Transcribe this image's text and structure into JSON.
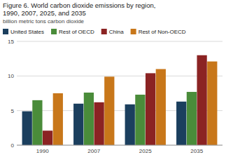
{
  "chart_data": {
    "type": "bar",
    "title": "Figure 6. World carbon dioxide emissions by region,",
    "subtitle": "1990, 2007, 2025, and 2035",
    "y_label": "billion metric tons carbon dioxide",
    "categories": [
      "1990",
      "2007",
      "2025",
      "2035"
    ],
    "series": [
      {
        "name": "United States",
        "color": "#1b3f5e",
        "values": [
          4.9,
          6.0,
          5.9,
          6.3
        ]
      },
      {
        "name": "Rest of OECD",
        "color": "#4a8c3a",
        "values": [
          6.5,
          7.6,
          7.3,
          7.7
        ]
      },
      {
        "name": "China",
        "color": "#8b2323",
        "values": [
          2.1,
          6.2,
          10.4,
          13.0
        ]
      },
      {
        "name": "Rest of Non-OECD",
        "color": "#c8771a",
        "values": [
          7.5,
          9.9,
          11.0,
          12.1
        ]
      }
    ],
    "ylim": [
      0,
      15
    ],
    "yticks": [
      0,
      5,
      10,
      15
    ],
    "grid": true,
    "legend": "top"
  }
}
